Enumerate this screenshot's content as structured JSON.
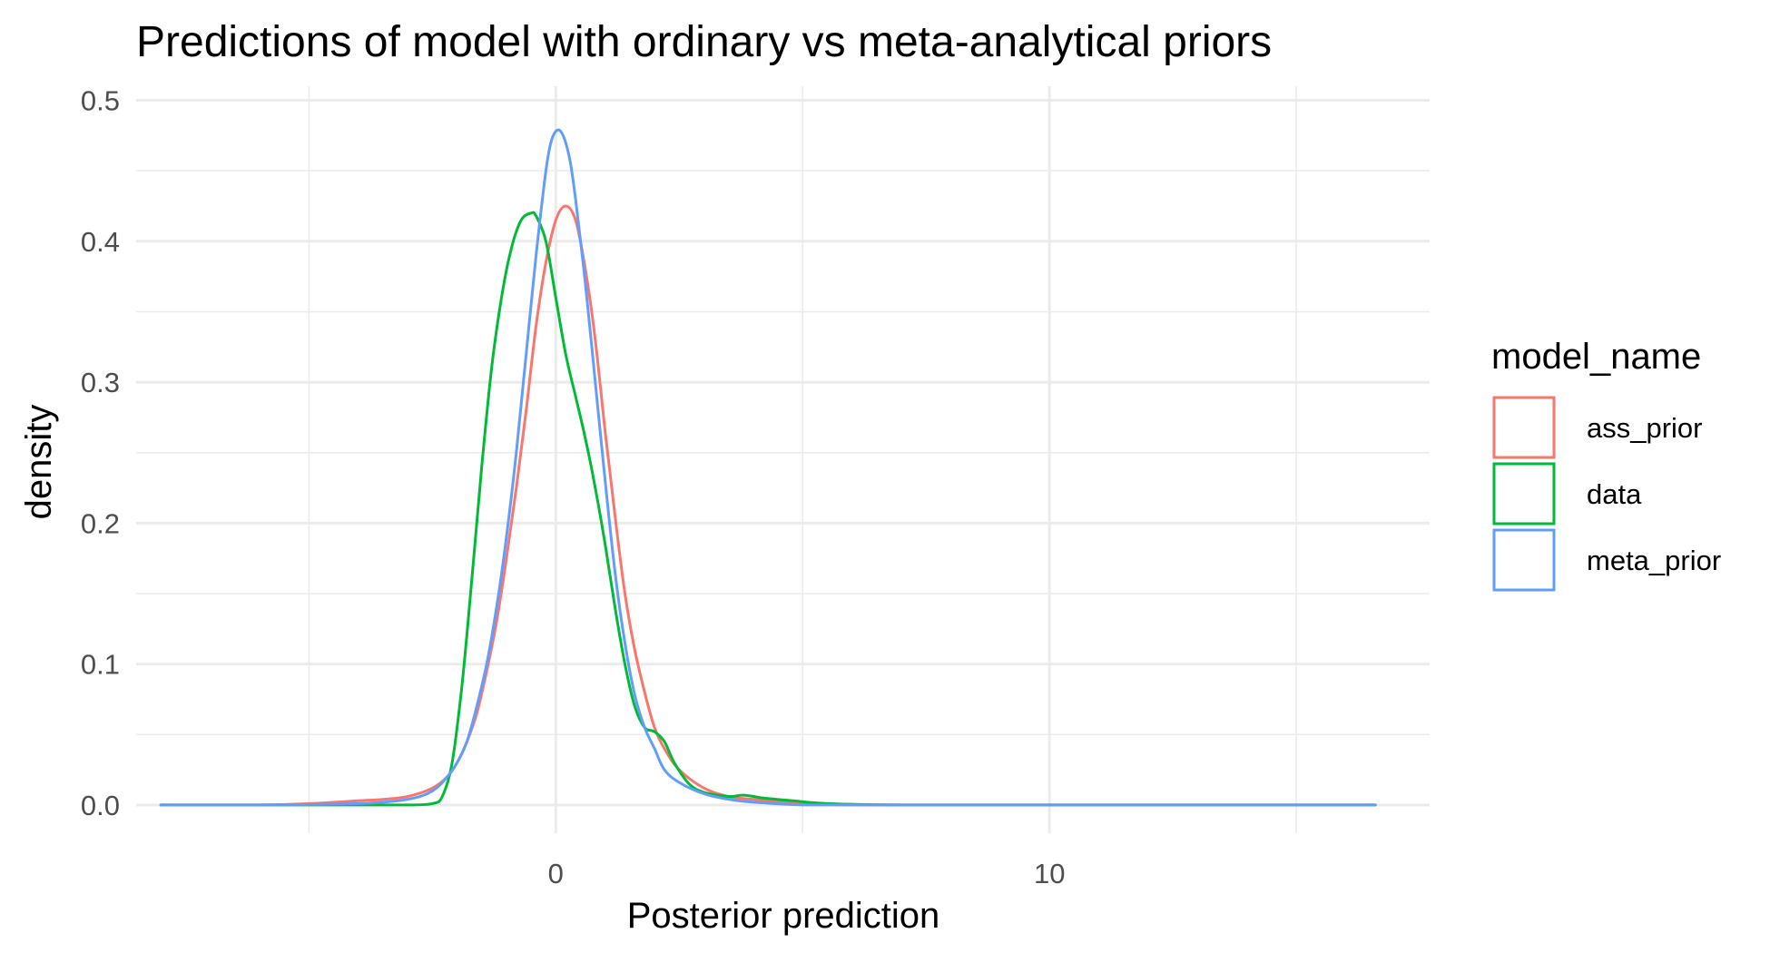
{
  "chart_data": {
    "type": "line",
    "title": "Predictions of model with ordinary vs meta-analytical priors",
    "xlabel": "Posterior prediction",
    "ylabel": "density",
    "xlim": [
      -8.5,
      17.7
    ],
    "ylim": [
      -0.02,
      0.51
    ],
    "x_ticks": [
      0,
      10
    ],
    "x_minor_ticks": [
      -5,
      5,
      15
    ],
    "y_ticks": [
      0.0,
      0.1,
      0.2,
      0.3,
      0.4,
      0.5
    ],
    "y_tick_labels": [
      "0.0",
      "0.1",
      "0.2",
      "0.3",
      "0.4",
      "0.5"
    ],
    "y_minor_ticks": [
      0.05,
      0.15,
      0.25,
      0.35,
      0.45
    ],
    "grid": true,
    "legend": {
      "title": "model_name",
      "position": "right",
      "items": [
        "ass_prior",
        "data",
        "meta_prior"
      ]
    },
    "series": [
      {
        "name": "ass_prior",
        "color": "#F8766D",
        "x": [
          -8.0,
          -6.0,
          -5.0,
          -4.0,
          -3.5,
          -3.0,
          -2.5,
          -2.2,
          -2.0,
          -1.8,
          -1.6,
          -1.4,
          -1.2,
          -1.0,
          -0.8,
          -0.6,
          -0.4,
          -0.2,
          0.0,
          0.2,
          0.4,
          0.6,
          0.8,
          1.0,
          1.2,
          1.4,
          1.6,
          1.8,
          2.0,
          2.2,
          2.5,
          3.0,
          3.5,
          4.0,
          5.0,
          6.0,
          8.0,
          10.0,
          12.0,
          14.0,
          16.0,
          16.6
        ],
        "values": [
          0.0,
          0.0,
          0.001,
          0.003,
          0.004,
          0.006,
          0.012,
          0.02,
          0.03,
          0.045,
          0.065,
          0.095,
          0.13,
          0.175,
          0.225,
          0.28,
          0.34,
          0.385,
          0.415,
          0.425,
          0.415,
          0.38,
          0.33,
          0.265,
          0.205,
          0.15,
          0.11,
          0.08,
          0.055,
          0.04,
          0.025,
          0.012,
          0.006,
          0.004,
          0.001,
          0.0,
          0.0,
          0.0,
          0.0,
          0.0,
          0.0,
          0.0
        ]
      },
      {
        "name": "data",
        "color": "#00BA38",
        "x": [
          -8.0,
          -6.0,
          -4.0,
          -3.0,
          -2.5,
          -2.3,
          -2.1,
          -1.9,
          -1.7,
          -1.5,
          -1.3,
          -1.1,
          -0.9,
          -0.7,
          -0.5,
          -0.4,
          -0.2,
          0.0,
          0.2,
          0.4,
          0.6,
          0.8,
          1.0,
          1.2,
          1.4,
          1.6,
          1.8,
          2.0,
          2.2,
          2.4,
          2.7,
          3.0,
          3.5,
          3.8,
          4.2,
          4.8,
          5.5,
          7.0,
          10.0,
          13.0,
          16.6
        ],
        "values": [
          0.0,
          0.0,
          0.0,
          0.0,
          0.001,
          0.006,
          0.03,
          0.085,
          0.16,
          0.24,
          0.31,
          0.36,
          0.395,
          0.415,
          0.42,
          0.418,
          0.4,
          0.36,
          0.32,
          0.29,
          0.26,
          0.225,
          0.185,
          0.14,
          0.1,
          0.07,
          0.055,
          0.052,
          0.045,
          0.03,
          0.015,
          0.009,
          0.006,
          0.007,
          0.005,
          0.003,
          0.001,
          0.0,
          0.0,
          0.0,
          0.0
        ]
      },
      {
        "name": "meta_prior",
        "color": "#619CFF",
        "x": [
          -8.0,
          -6.0,
          -4.0,
          -3.0,
          -2.5,
          -2.2,
          -2.0,
          -1.8,
          -1.6,
          -1.4,
          -1.2,
          -1.0,
          -0.8,
          -0.6,
          -0.4,
          -0.2,
          -0.1,
          0.0,
          0.1,
          0.2,
          0.3,
          0.4,
          0.6,
          0.8,
          1.0,
          1.2,
          1.4,
          1.6,
          1.8,
          2.0,
          2.2,
          2.5,
          3.0,
          3.5,
          4.0,
          5.0,
          6.0,
          8.0,
          10.0,
          12.0,
          14.0,
          16.6
        ],
        "values": [
          0.0,
          0.0,
          0.001,
          0.004,
          0.01,
          0.02,
          0.03,
          0.045,
          0.07,
          0.1,
          0.14,
          0.19,
          0.25,
          0.32,
          0.39,
          0.45,
          0.47,
          0.478,
          0.478,
          0.47,
          0.455,
          0.43,
          0.37,
          0.3,
          0.23,
          0.165,
          0.115,
          0.078,
          0.055,
          0.04,
          0.025,
          0.016,
          0.008,
          0.004,
          0.002,
          0.0,
          0.0,
          0.0,
          0.0,
          0.0,
          0.0,
          0.0
        ]
      }
    ]
  }
}
